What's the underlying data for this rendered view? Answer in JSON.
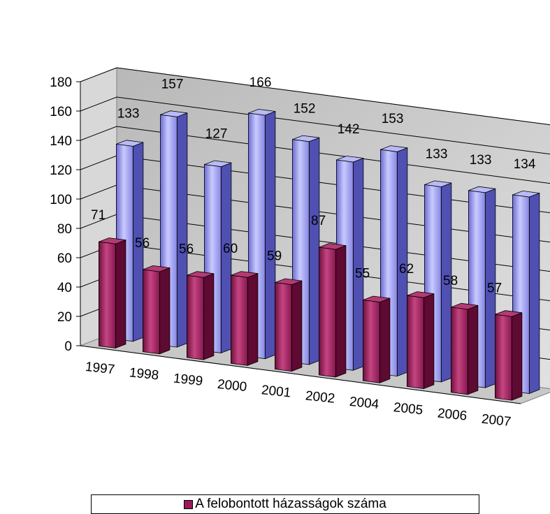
{
  "chart_data": {
    "type": "bar",
    "style": "3d-clustered-column",
    "title": "",
    "xlabel": "",
    "ylabel": "",
    "categories": [
      "1997",
      "1998",
      "1999",
      "2000",
      "2001",
      "2002",
      "2004",
      "2005",
      "2006",
      "2007"
    ],
    "yticks": [
      "0",
      "20",
      "40",
      "60",
      "80",
      "100",
      "120",
      "140",
      "160",
      "180"
    ],
    "ylim": [
      0,
      180
    ],
    "grid": true,
    "legend_position": "bottom",
    "series": [
      {
        "name": "A felobontott házasságok száma",
        "color": "#9a1a5a",
        "values": [
          71,
          56,
          56,
          60,
          59,
          87,
          55,
          62,
          58,
          57
        ],
        "labels": [
          "71",
          "56",
          "56",
          "60",
          "59",
          "87",
          "55",
          "62",
          "58",
          "57"
        ]
      },
      {
        "color": "#8f90e6",
        "values": [
          133,
          157,
          127,
          166,
          152,
          142,
          153,
          133,
          133,
          134
        ],
        "labels": [
          "133",
          "157",
          "127",
          "166",
          "152",
          "142",
          "153",
          "133",
          "133",
          "134"
        ]
      }
    ]
  }
}
